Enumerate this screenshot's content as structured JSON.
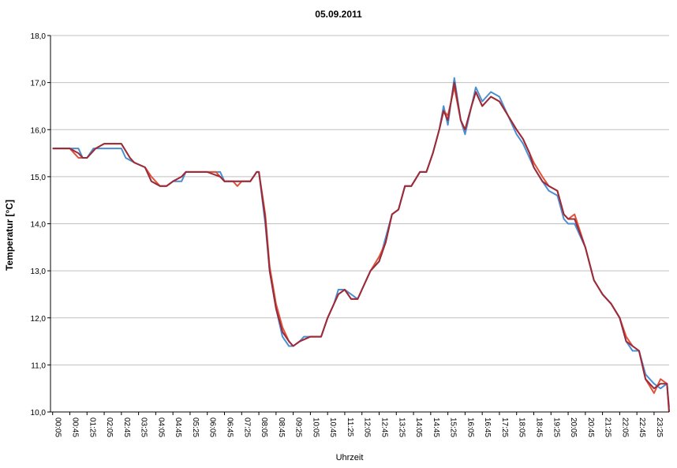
{
  "chart_data": {
    "type": "line",
    "title": "05.09.2011",
    "xlabel": "Uhrzeit",
    "ylabel": "Temperatur [°C]",
    "ylim": [
      10.0,
      18.0
    ],
    "yticks": [
      "10,0",
      "11,0",
      "12,0",
      "13,0",
      "14,0",
      "15,0",
      "16,0",
      "17,0",
      "18,0"
    ],
    "categories": [
      "00:05",
      "00:45",
      "01:25",
      "02:05",
      "02:45",
      "03:25",
      "04:05",
      "04:45",
      "05:25",
      "06:05",
      "06:45",
      "07:25",
      "08:05",
      "08:45",
      "09:25",
      "10:05",
      "10:45",
      "11:25",
      "12:05",
      "12:45",
      "13:25",
      "14:05",
      "14:45",
      "15:25",
      "16:05",
      "16:45",
      "17:25",
      "18:05",
      "18:45",
      "19:25",
      "20:05",
      "20:45",
      "21:25",
      "22:05",
      "22:45",
      "23:25"
    ],
    "x_minutes_end": 1440,
    "grid": true,
    "series": [
      {
        "color": "#4a8fd4",
        "x": [
          "00:05",
          "00:45",
          "01:05",
          "01:15",
          "01:25",
          "01:40",
          "01:50",
          "02:05",
          "02:45",
          "02:55",
          "03:15",
          "03:40",
          "03:55",
          "04:15",
          "04:30",
          "04:45",
          "05:05",
          "05:15",
          "05:35",
          "06:05",
          "06:35",
          "06:45",
          "07:05",
          "07:25",
          "07:45",
          "08:00",
          "08:05",
          "08:20",
          "08:30",
          "08:45",
          "09:00",
          "09:15",
          "09:25",
          "09:40",
          "09:50",
          "10:05",
          "10:30",
          "10:45",
          "11:00",
          "11:10",
          "11:25",
          "11:40",
          "11:55",
          "12:10",
          "12:25",
          "12:45",
          "13:00",
          "13:15",
          "13:30",
          "13:45",
          "14:00",
          "14:20",
          "14:35",
          "14:50",
          "15:05",
          "15:15",
          "15:25",
          "15:40",
          "15:55",
          "16:05",
          "16:20",
          "16:30",
          "16:45",
          "16:55",
          "17:05",
          "17:25",
          "17:45",
          "18:05",
          "18:20",
          "18:35",
          "18:45",
          "19:05",
          "19:20",
          "19:40",
          "19:55",
          "20:05",
          "20:20",
          "20:45",
          "21:05",
          "21:25",
          "21:45",
          "22:05",
          "22:20",
          "22:35",
          "22:50",
          "23:05",
          "23:25",
          "23:40",
          "23:55",
          "24:00"
        ],
        "y": [
          15.6,
          15.6,
          15.6,
          15.4,
          15.4,
          15.6,
          15.6,
          15.6,
          15.6,
          15.4,
          15.3,
          15.2,
          14.9,
          14.8,
          14.8,
          14.9,
          14.9,
          15.1,
          15.1,
          15.1,
          15.1,
          14.9,
          14.9,
          14.9,
          14.9,
          15.1,
          15.1,
          14.0,
          13.0,
          12.2,
          11.6,
          11.4,
          11.4,
          11.5,
          11.6,
          11.6,
          11.6,
          12.0,
          12.3,
          12.6,
          12.6,
          12.5,
          12.4,
          12.7,
          13.0,
          13.2,
          13.7,
          14.2,
          14.3,
          14.8,
          14.8,
          15.1,
          15.1,
          15.5,
          16.0,
          16.5,
          16.1,
          17.1,
          16.2,
          15.9,
          16.5,
          16.9,
          16.6,
          16.7,
          16.8,
          16.7,
          16.3,
          15.9,
          15.7,
          15.4,
          15.2,
          14.9,
          14.7,
          14.6,
          14.1,
          14.0,
          14.0,
          13.5,
          12.8,
          12.5,
          12.3,
          12.0,
          11.5,
          11.3,
          11.3,
          10.8,
          10.6,
          10.5,
          10.6,
          10.1
        ]
      },
      {
        "color": "#e0533a",
        "x": [
          "00:05",
          "00:45",
          "00:55",
          "01:05",
          "01:25",
          "01:45",
          "02:05",
          "02:45",
          "03:05",
          "03:15",
          "03:40",
          "03:55",
          "04:15",
          "04:30",
          "04:45",
          "05:05",
          "05:15",
          "05:35",
          "06:05",
          "06:25",
          "06:35",
          "06:45",
          "07:05",
          "07:15",
          "07:25",
          "07:45",
          "08:00",
          "08:05",
          "08:20",
          "08:30",
          "08:45",
          "09:00",
          "09:15",
          "09:25",
          "09:40",
          "10:05",
          "10:30",
          "10:45",
          "11:00",
          "11:10",
          "11:25",
          "11:40",
          "11:55",
          "12:10",
          "12:25",
          "12:45",
          "13:00",
          "13:15",
          "13:30",
          "13:45",
          "14:00",
          "14:20",
          "14:35",
          "14:50",
          "15:05",
          "15:15",
          "15:25",
          "15:40",
          "15:55",
          "16:05",
          "16:20",
          "16:30",
          "16:45",
          "16:55",
          "17:05",
          "17:25",
          "17:45",
          "18:05",
          "18:20",
          "18:35",
          "18:45",
          "19:05",
          "19:20",
          "19:40",
          "19:55",
          "20:05",
          "20:20",
          "20:45",
          "21:05",
          "21:25",
          "21:45",
          "22:05",
          "22:20",
          "22:35",
          "22:50",
          "23:05",
          "23:25",
          "23:40",
          "23:55",
          "24:00"
        ],
        "y": [
          15.6,
          15.6,
          15.5,
          15.4,
          15.4,
          15.6,
          15.7,
          15.7,
          15.4,
          15.3,
          15.2,
          15.0,
          14.8,
          14.8,
          14.9,
          15.0,
          15.1,
          15.1,
          15.1,
          15.1,
          15.0,
          14.9,
          14.9,
          14.8,
          14.9,
          14.9,
          15.1,
          15.1,
          14.2,
          13.1,
          12.3,
          11.8,
          11.5,
          11.4,
          11.5,
          11.6,
          11.6,
          12.0,
          12.3,
          12.5,
          12.6,
          12.4,
          12.4,
          12.7,
          13.0,
          13.3,
          13.6,
          14.2,
          14.3,
          14.8,
          14.8,
          15.1,
          15.1,
          15.5,
          16.0,
          16.4,
          16.3,
          16.9,
          16.2,
          16.0,
          16.5,
          16.8,
          16.5,
          16.6,
          16.7,
          16.6,
          16.3,
          16.0,
          15.8,
          15.5,
          15.3,
          15.0,
          14.8,
          14.7,
          14.2,
          14.1,
          14.2,
          13.5,
          12.8,
          12.5,
          12.3,
          12.0,
          11.6,
          11.4,
          11.3,
          10.7,
          10.4,
          10.7,
          10.6,
          10.0
        ]
      },
      {
        "color": "#9b2b3a",
        "x": [
          "00:05",
          "00:45",
          "01:05",
          "01:15",
          "01:25",
          "01:45",
          "02:05",
          "02:45",
          "03:05",
          "03:15",
          "03:40",
          "03:55",
          "04:15",
          "04:30",
          "04:45",
          "05:05",
          "05:15",
          "05:35",
          "06:05",
          "06:35",
          "06:45",
          "07:05",
          "07:25",
          "07:45",
          "08:00",
          "08:05",
          "08:20",
          "08:30",
          "08:45",
          "09:00",
          "09:15",
          "09:25",
          "09:40",
          "10:05",
          "10:30",
          "10:45",
          "11:00",
          "11:10",
          "11:25",
          "11:40",
          "11:55",
          "12:10",
          "12:25",
          "12:45",
          "13:00",
          "13:15",
          "13:30",
          "13:45",
          "14:00",
          "14:20",
          "14:35",
          "14:50",
          "15:05",
          "15:15",
          "15:25",
          "15:40",
          "15:55",
          "16:05",
          "16:20",
          "16:30",
          "16:45",
          "16:55",
          "17:05",
          "17:25",
          "17:45",
          "18:05",
          "18:20",
          "18:35",
          "18:45",
          "19:05",
          "19:20",
          "19:40",
          "19:55",
          "20:05",
          "20:20",
          "20:45",
          "21:05",
          "21:25",
          "21:45",
          "22:05",
          "22:20",
          "22:35",
          "22:50",
          "23:05",
          "23:25",
          "23:40",
          "23:55",
          "24:00"
        ],
        "y": [
          15.6,
          15.6,
          15.5,
          15.4,
          15.4,
          15.6,
          15.7,
          15.7,
          15.4,
          15.3,
          15.2,
          14.9,
          14.8,
          14.8,
          14.9,
          15.0,
          15.1,
          15.1,
          15.1,
          15.0,
          14.9,
          14.9,
          14.9,
          14.9,
          15.1,
          15.1,
          14.1,
          13.0,
          12.2,
          11.7,
          11.5,
          11.4,
          11.5,
          11.6,
          11.6,
          12.0,
          12.3,
          12.5,
          12.6,
          12.4,
          12.4,
          12.7,
          13.0,
          13.2,
          13.6,
          14.2,
          14.3,
          14.8,
          14.8,
          15.1,
          15.1,
          15.5,
          16.0,
          16.4,
          16.2,
          17.0,
          16.2,
          16.0,
          16.5,
          16.8,
          16.5,
          16.6,
          16.7,
          16.6,
          16.3,
          16.0,
          15.8,
          15.5,
          15.2,
          14.9,
          14.8,
          14.7,
          14.2,
          14.1,
          14.1,
          13.5,
          12.8,
          12.5,
          12.3,
          12.0,
          11.5,
          11.4,
          11.3,
          10.7,
          10.5,
          10.6,
          10.6,
          10.0
        ]
      }
    ]
  }
}
